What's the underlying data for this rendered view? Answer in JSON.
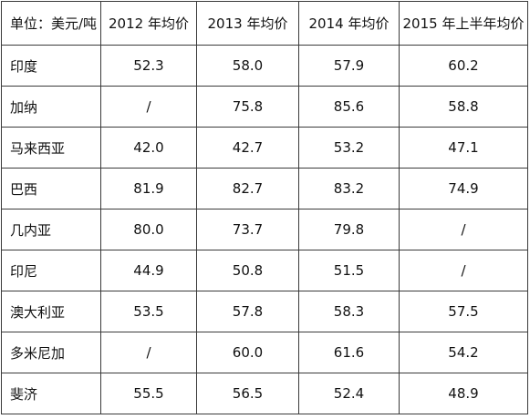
{
  "table": {
    "header": [
      "单位：美元/吨",
      "2012 年均价",
      "2013 年均价",
      "2014 年均价",
      "2015 年上半年均价"
    ],
    "rows": [
      {
        "country": "印度",
        "values": [
          "52.3",
          "58.0",
          "57.9",
          "60.2"
        ]
      },
      {
        "country": "加纳",
        "values": [
          "/",
          "75.8",
          "85.6",
          "58.8"
        ]
      },
      {
        "country": "马来西亚",
        "values": [
          "42.0",
          "42.7",
          "53.2",
          "47.1"
        ]
      },
      {
        "country": "巴西",
        "values": [
          "81.9",
          "82.7",
          "83.2",
          "74.9"
        ]
      },
      {
        "country": "几内亚",
        "values": [
          "80.0",
          "73.7",
          "79.8",
          "/"
        ]
      },
      {
        "country": "印尼",
        "values": [
          "44.9",
          "50.8",
          "51.5",
          "/"
        ]
      },
      {
        "country": "澳大利亚",
        "values": [
          "53.5",
          "57.8",
          "58.3",
          "57.5"
        ]
      },
      {
        "country": "多米尼加",
        "values": [
          "/",
          "60.0",
          "61.6",
          "54.2"
        ]
      },
      {
        "country": "斐济",
        "values": [
          "55.5",
          "56.5",
          "52.4",
          "48.9"
        ]
      }
    ]
  }
}
